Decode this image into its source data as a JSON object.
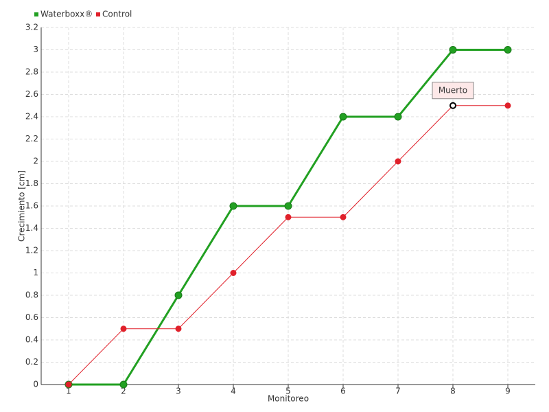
{
  "chart_data": {
    "type": "line",
    "categories": [
      "1",
      "2",
      "3",
      "4",
      "5",
      "6",
      "7",
      "8",
      "9"
    ],
    "series": [
      {
        "name": "Waterboxx®",
        "color": "#22a022",
        "values": [
          0,
          0,
          0.8,
          1.6,
          1.6,
          2.4,
          2.4,
          3,
          3
        ]
      },
      {
        "name": "Control",
        "color": "#e0202a",
        "values": [
          0,
          0.5,
          0.5,
          1,
          1.5,
          1.5,
          2,
          2.5,
          2.5
        ]
      }
    ],
    "x_label": "Monitoreo",
    "y_label": "Crecimiento [cm]",
    "ylim": [
      0,
      3.2
    ],
    "yticks": [
      0,
      0.2,
      0.4,
      0.6,
      0.8,
      1,
      1.2,
      1.4,
      1.6,
      1.8,
      2,
      2.2,
      2.4,
      2.6,
      2.8,
      3,
      3.2
    ],
    "grid": true,
    "annotation": {
      "text": "Muerto",
      "x": "8",
      "y": 2.5
    }
  }
}
